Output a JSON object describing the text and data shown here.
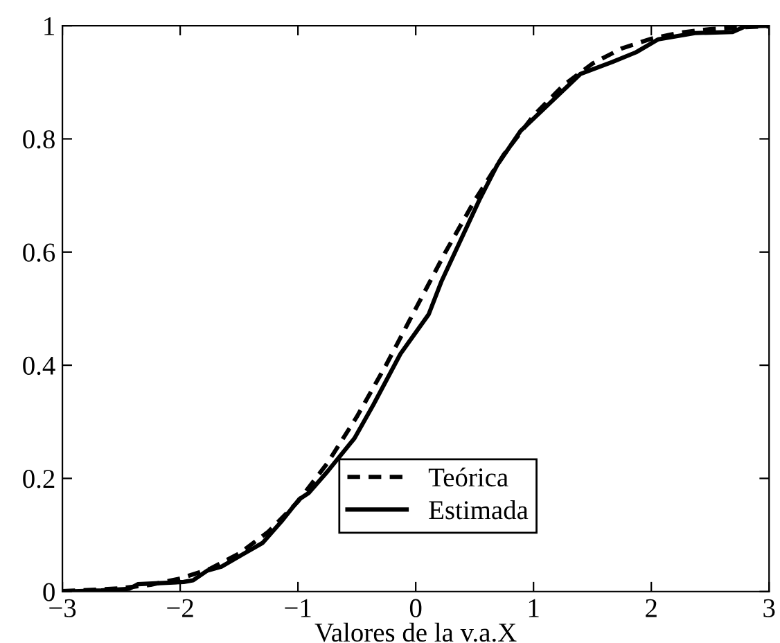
{
  "chart_data": {
    "type": "line",
    "xlabel": "Valores de la v.a.X",
    "xlim": [
      -3,
      3
    ],
    "ylim": [
      0,
      1
    ],
    "xticks": [
      {
        "value": -3,
        "label": "−3"
      },
      {
        "value": -2,
        "label": "−2"
      },
      {
        "value": -1,
        "label": "−1"
      },
      0,
      1,
      2,
      3
    ],
    "yticks": [
      0,
      0.2,
      0.4,
      0.6,
      0.8,
      1
    ],
    "grid": false,
    "legend": "bottom right",
    "series": [
      {
        "name": "Teórica",
        "color": "#000000",
        "line_style": "dashed",
        "x": [
          -3,
          -2.75,
          -2.5,
          -2.25,
          -2,
          -1.75,
          -1.5,
          -1.25,
          -1,
          -0.75,
          -0.5,
          -0.25,
          0,
          0.25,
          0.5,
          0.75,
          1,
          1.25,
          1.5,
          1.75,
          2,
          2.25,
          2.5,
          2.75,
          3
        ],
        "values": [
          0.001,
          0.003,
          0.006,
          0.012,
          0.023,
          0.04,
          0.067,
          0.106,
          0.159,
          0.227,
          0.309,
          0.401,
          0.5,
          0.599,
          0.691,
          0.773,
          0.841,
          0.894,
          0.933,
          0.96,
          0.977,
          0.988,
          0.994,
          0.997,
          0.999
        ]
      },
      {
        "name": "Estimada",
        "color": "#000000",
        "line_style": "solid",
        "x": [
          -3,
          -2.67,
          -2.43,
          -2.36,
          -1.97,
          -1.89,
          -1.77,
          -1.65,
          -1.46,
          -1.3,
          -1.14,
          -0.99,
          -0.91,
          -0.75,
          -0.52,
          -0.36,
          -0.13,
          0.11,
          0.22,
          0.54,
          0.69,
          0.89,
          1.4,
          1.67,
          1.87,
          2.06,
          2.37,
          2.69,
          2.8,
          3
        ],
        "values": [
          0,
          0.002,
          0.005,
          0.013,
          0.017,
          0.02,
          0.037,
          0.044,
          0.067,
          0.086,
          0.124,
          0.163,
          0.174,
          0.212,
          0.271,
          0.33,
          0.42,
          0.49,
          0.549,
          0.692,
          0.753,
          0.814,
          0.915,
          0.936,
          0.953,
          0.976,
          0.987,
          0.989,
          0.999,
          1
        ]
      }
    ]
  }
}
